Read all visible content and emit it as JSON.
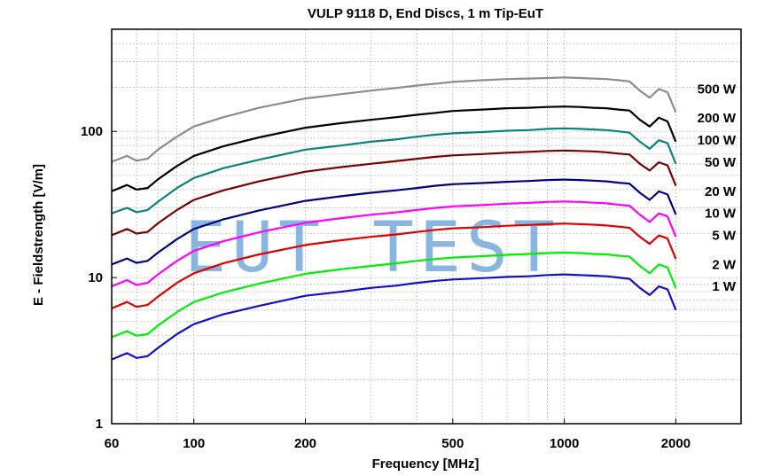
{
  "chart_data": {
    "type": "line",
    "title": "VULP 9118 D, End Discs, 1 m Tip-EuT",
    "xlabel": "Frequency [MHz]",
    "ylabel": "E - Fieldstrength [V/m]",
    "x_scale": "log",
    "y_scale": "log",
    "xlim": [
      60,
      3000
    ],
    "ylim": [
      1,
      500
    ],
    "x_ticks": [
      60,
      100,
      200,
      500,
      1000,
      2000
    ],
    "x_tick_labels": [
      "60",
      "100",
      "200",
      "500",
      "1000",
      "2000"
    ],
    "y_ticks": [
      1,
      10,
      100
    ],
    "y_tick_labels": [
      "1",
      "10",
      "100"
    ],
    "grid": true,
    "watermark": "EUT TEST",
    "x": [
      60,
      66,
      70,
      75,
      80,
      90,
      100,
      120,
      150,
      200,
      250,
      300,
      350,
      400,
      450,
      500,
      600,
      700,
      800,
      900,
      1000,
      1100,
      1200,
      1300,
      1400,
      1500,
      1600,
      1700,
      1800,
      1900,
      2000
    ],
    "series": [
      {
        "name": "500 W",
        "color": "#8c8c8c",
        "values": [
          62,
          68,
          63,
          65,
          75,
          92,
          108,
          125,
          145,
          168,
          180,
          190,
          198,
          206,
          212,
          218,
          224,
          228,
          230,
          232,
          234,
          232,
          230,
          228,
          224,
          220,
          190,
          170,
          195,
          185,
          135
        ]
      },
      {
        "name": "200 W",
        "color": "#000000",
        "values": [
          39,
          43,
          40,
          41,
          47,
          58,
          68,
          79,
          91,
          106,
          114,
          120,
          125,
          130,
          134,
          138,
          141,
          144,
          145,
          147,
          148,
          147,
          145,
          144,
          141,
          139,
          120,
          108,
          124,
          117,
          85
        ]
      },
      {
        "name": "100 W",
        "color": "#0a8080",
        "values": [
          27.5,
          30,
          28,
          29,
          33,
          41,
          48,
          56,
          64,
          75,
          80,
          85,
          88,
          92,
          95,
          97,
          99,
          101,
          102,
          104,
          105,
          104,
          103,
          102,
          100,
          98,
          85,
          76,
          87,
          83,
          60
        ]
      },
      {
        "name": "50 W",
        "color": "#7a0000",
        "values": [
          19.5,
          21.5,
          20,
          20.5,
          23.5,
          29,
          34,
          39.5,
          45.5,
          53,
          57,
          60,
          62.5,
          65,
          67,
          68.5,
          70,
          71.5,
          72.5,
          73.5,
          74,
          73.5,
          73,
          72,
          70.5,
          69.5,
          60,
          54,
          61.5,
          58.5,
          42.5
        ]
      },
      {
        "name": "20 W",
        "color": "#000080",
        "values": [
          12.3,
          13.5,
          12.6,
          13,
          14.8,
          18.3,
          21.5,
          25,
          28.8,
          33.5,
          36,
          38,
          39.5,
          41,
          42.5,
          43.5,
          44.3,
          45.2,
          45.8,
          46.5,
          46.8,
          46.5,
          46,
          45.5,
          44.6,
          43.9,
          38,
          34,
          38.9,
          37,
          27
        ]
      },
      {
        "name": "10 W",
        "color": "#ff00ff",
        "values": [
          8.7,
          9.6,
          8.9,
          9.2,
          10.5,
          13,
          15.2,
          17.7,
          20.4,
          23.7,
          25.5,
          26.9,
          27.9,
          29,
          30,
          30.7,
          31.3,
          32,
          32.4,
          32.9,
          33.1,
          32.9,
          32.5,
          32.2,
          31.5,
          31,
          26.9,
          24,
          27.5,
          26.2,
          19
        ]
      },
      {
        "name": "5 W",
        "color": "#e00000",
        "values": [
          6.15,
          6.8,
          6.3,
          6.5,
          7.4,
          9.2,
          10.7,
          12.5,
          14.4,
          16.7,
          18,
          19,
          19.7,
          20.5,
          21.2,
          21.7,
          22.1,
          22.6,
          22.9,
          23.2,
          23.4,
          23.2,
          23,
          22.7,
          22.3,
          21.9,
          19,
          17,
          19.4,
          18.5,
          13.4
        ]
      },
      {
        "name": "2 W",
        "color": "#00ee00",
        "values": [
          3.9,
          4.3,
          4,
          4.1,
          4.7,
          5.8,
          6.8,
          7.9,
          9.1,
          10.6,
          11.4,
          12,
          12.5,
          13,
          13.4,
          13.7,
          14,
          14.3,
          14.5,
          14.7,
          14.8,
          14.7,
          14.5,
          14.4,
          14.1,
          13.9,
          12,
          10.7,
          12.3,
          11.7,
          8.5
        ]
      },
      {
        "name": "1 W",
        "color": "#1010cc",
        "values": [
          2.75,
          3.04,
          2.82,
          2.9,
          3.3,
          4.1,
          4.8,
          5.6,
          6.4,
          7.5,
          8,
          8.5,
          8.8,
          9.2,
          9.5,
          9.7,
          9.9,
          10.1,
          10.2,
          10.4,
          10.5,
          10.4,
          10.3,
          10.2,
          10,
          9.8,
          8.5,
          7.6,
          8.7,
          8.3,
          6
        ]
      }
    ]
  }
}
